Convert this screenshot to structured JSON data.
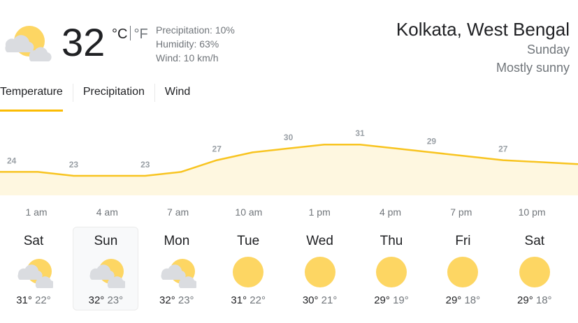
{
  "current": {
    "temperature": "32",
    "unit_c": "°C",
    "unit_f": "°F",
    "icon": "partly-cloudy-icon",
    "precipitation": "Precipitation: 10%",
    "humidity": "Humidity: 63%",
    "wind": "Wind: 10 km/h"
  },
  "location": {
    "city": "Kolkata, West Bengal",
    "day": "Sunday",
    "condition": "Mostly sunny"
  },
  "tabs": [
    {
      "label": "Temperature",
      "active": true
    },
    {
      "label": "Precipitation",
      "active": false
    },
    {
      "label": "Wind",
      "active": false
    }
  ],
  "colors": {
    "accent": "#fbbc04",
    "area_fill": "#fef7e0",
    "line": "#f8c420",
    "sun": "#fdd663",
    "cloud": "#dadce0"
  },
  "chart_data": {
    "type": "area",
    "x": [
      "1 am",
      "2:30 am",
      "4 am",
      "5:30 am",
      "7 am",
      "8:30 am",
      "10 am",
      "11:30 am",
      "1 pm",
      "2:30 pm",
      "4 pm",
      "5:30 pm",
      "7 pm",
      "8:30 pm",
      "10 pm",
      "11:30 pm"
    ],
    "values": [
      24,
      24,
      23,
      23,
      23,
      24,
      27,
      29,
      30,
      31,
      31,
      30,
      29,
      28,
      27,
      26
    ],
    "labels": [
      "24",
      "23",
      "23",
      "27",
      "30",
      "31",
      "29",
      "27"
    ],
    "hour_labels": [
      "1 am",
      "4 am",
      "7 am",
      "10 am",
      "1 pm",
      "4 pm",
      "7 pm",
      "10 pm"
    ]
  },
  "forecast": [
    {
      "day": "Sat",
      "high": "31°",
      "low": "22°",
      "icon": "partly-cloudy-icon"
    },
    {
      "day": "Sun",
      "high": "32°",
      "low": "23°",
      "icon": "partly-cloudy-icon",
      "selected": true
    },
    {
      "day": "Mon",
      "high": "32°",
      "low": "23°",
      "icon": "partly-cloudy-icon"
    },
    {
      "day": "Tue",
      "high": "31°",
      "low": "22°",
      "icon": "sunny-icon"
    },
    {
      "day": "Wed",
      "high": "30°",
      "low": "21°",
      "icon": "sunny-icon"
    },
    {
      "day": "Thu",
      "high": "29°",
      "low": "19°",
      "icon": "sunny-icon"
    },
    {
      "day": "Fri",
      "high": "29°",
      "low": "18°",
      "icon": "sunny-icon"
    },
    {
      "day": "Sat",
      "high": "29°",
      "low": "18°",
      "icon": "sunny-icon"
    }
  ]
}
